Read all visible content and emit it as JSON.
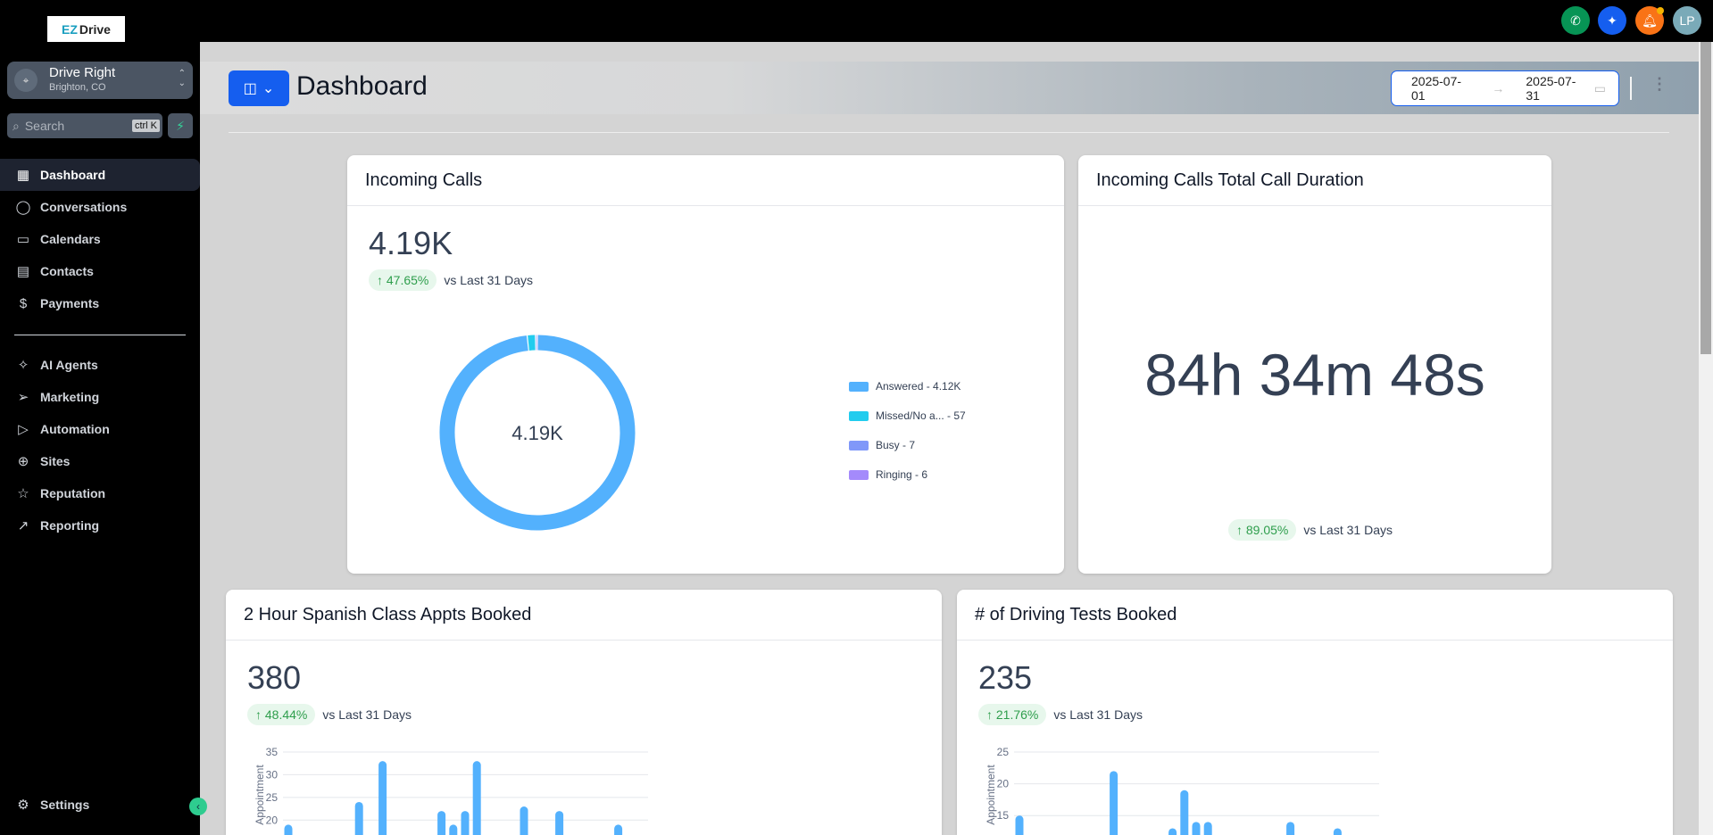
{
  "brand": {
    "logo_text_1": "EZ",
    "logo_text_2": "Drive"
  },
  "topbar": {
    "icons": [
      {
        "name": "phone-icon",
        "color": "#079455"
      },
      {
        "name": "sparkle-icon",
        "color": "#155eef"
      },
      {
        "name": "bell-icon",
        "color": "#f97316"
      }
    ],
    "avatar": "LP",
    "avatar_color": "#7aaab8"
  },
  "location": {
    "name": "Drive Right",
    "city": "Brighton, CO"
  },
  "search": {
    "placeholder": "Search",
    "shortcut": "ctrl K"
  },
  "sidebar": {
    "items": [
      {
        "label": "Dashboard",
        "icon": "grid-icon",
        "active": true
      },
      {
        "label": "Conversations",
        "icon": "chat-icon"
      },
      {
        "label": "Calendars",
        "icon": "calendar-icon"
      },
      {
        "label": "Contacts",
        "icon": "contacts-icon"
      },
      {
        "label": "Payments",
        "icon": "payments-icon"
      },
      {
        "label": "AI Agents",
        "icon": "sparkle-icon"
      },
      {
        "label": "Marketing",
        "icon": "send-icon"
      },
      {
        "label": "Automation",
        "icon": "play-icon"
      },
      {
        "label": "Sites",
        "icon": "globe-icon"
      },
      {
        "label": "Reputation",
        "icon": "star-icon"
      },
      {
        "label": "Reporting",
        "icon": "trend-icon"
      }
    ],
    "settings": "Settings"
  },
  "header": {
    "title": "Dashboard",
    "date_start": "2025-07-01",
    "date_end": "2025-07-31"
  },
  "cards": {
    "incoming_calls": {
      "title": "Incoming Calls",
      "value": "4.19K",
      "change": "↑ 47.65%",
      "compare": "vs Last 31 Days",
      "center": "4.19K",
      "legend": [
        {
          "label": "Answered - 4.12K",
          "color": "#53b1fd"
        },
        {
          "label": "Missed/No a... - 57",
          "color": "#22ccee"
        },
        {
          "label": "Busy - 7",
          "color": "#8098f9"
        },
        {
          "label": "Ringing - 6",
          "color": "#a48afb"
        }
      ]
    },
    "duration": {
      "title": "Incoming Calls Total Call Duration",
      "value": "84h 34m 48s",
      "change": "↑ 89.05%",
      "compare": "vs Last 31 Days"
    },
    "spanish": {
      "title": "2 Hour Spanish Class Appts Booked",
      "value": "380",
      "change": "↑ 48.44%",
      "compare": "vs Last 31 Days",
      "ylabel": "Appointment"
    },
    "driving": {
      "title": "# of Driving Tests Booked",
      "value": "235",
      "change": "↑ 21.76%",
      "compare": "vs Last 31 Days",
      "ylabel": "Appointment"
    }
  },
  "chart_data": [
    {
      "type": "pie",
      "donut": true,
      "categories": [
        "Answered",
        "Missed/No answer",
        "Busy",
        "Ringing"
      ],
      "values": [
        4120,
        57,
        7,
        6
      ],
      "colors": [
        "#53b1fd",
        "#22ccee",
        "#8098f9",
        "#a48afb"
      ],
      "center_label": "4.19K",
      "legend": "right"
    },
    {
      "type": "bar",
      "ylabel": "Appointment",
      "ylim": [
        0,
        35
      ],
      "yticks": [
        20,
        25,
        30,
        35
      ],
      "grid": true,
      "color": "#53b1fd",
      "values": [
        19,
        null,
        null,
        null,
        null,
        null,
        24,
        null,
        33,
        null,
        null,
        null,
        null,
        22,
        19,
        22,
        33,
        null,
        null,
        null,
        23,
        null,
        null,
        22,
        null,
        null,
        null,
        null,
        19,
        null,
        null
      ]
    },
    {
      "type": "bar",
      "ylabel": "Appointment",
      "ylim": [
        0,
        25
      ],
      "yticks": [
        15,
        20,
        25
      ],
      "grid": true,
      "color": "#53b1fd",
      "values": [
        15,
        null,
        null,
        null,
        null,
        null,
        null,
        null,
        22,
        null,
        null,
        null,
        null,
        13,
        19,
        14,
        14,
        null,
        null,
        null,
        null,
        null,
        null,
        14,
        null,
        null,
        null,
        13,
        null,
        null,
        null
      ]
    }
  ]
}
